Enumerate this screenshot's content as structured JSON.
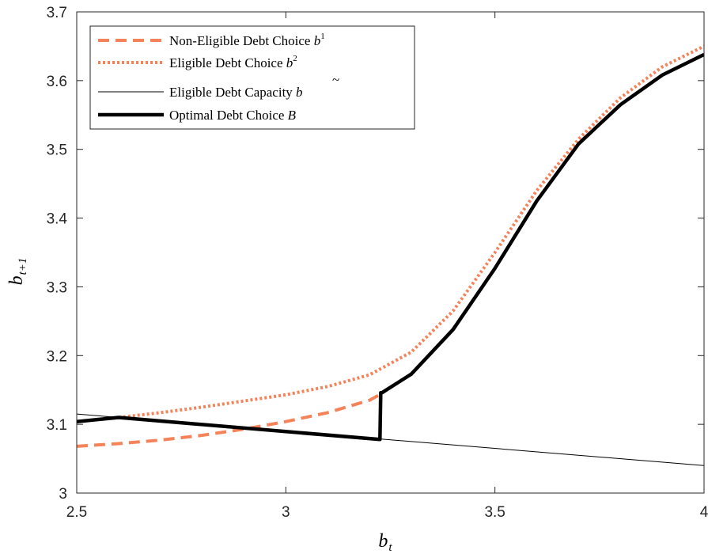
{
  "chart_data": {
    "type": "line",
    "title": "",
    "xlabel": "b",
    "xlabel_sub": "t",
    "ylabel": "b",
    "ylabel_sub": "t+1",
    "xlim": [
      2.5,
      4
    ],
    "ylim": [
      3,
      3.7
    ],
    "xticks": [
      2.5,
      3,
      3.5,
      4
    ],
    "xtick_labels": [
      "2.5",
      "3",
      "3.5",
      "4"
    ],
    "yticks": [
      3,
      3.1,
      3.2,
      3.3,
      3.4,
      3.5,
      3.6,
      3.7
    ],
    "ytick_labels": [
      "3",
      "3.1",
      "3.2",
      "3.3",
      "3.4",
      "3.5",
      "3.6",
      "3.7"
    ],
    "grid": false,
    "legend_position": "top-left",
    "series": [
      {
        "name": "Non-Eligible Debt Choice",
        "symbol": "b",
        "superscript": "1",
        "style": "dashed",
        "color": "#F4835A",
        "x": [
          2.5,
          2.6,
          2.7,
          2.8,
          2.9,
          3.0,
          3.1,
          3.2,
          3.23
        ],
        "y": [
          3.068,
          3.072,
          3.077,
          3.084,
          3.093,
          3.104,
          3.117,
          3.135,
          3.145
        ]
      },
      {
        "name": "Eligible Debt Choice",
        "symbol": "b",
        "superscript": "2",
        "style": "dotted",
        "color": "#F4835A",
        "x": [
          2.6,
          2.7,
          2.8,
          2.9,
          3.0,
          3.1,
          3.2,
          3.3,
          3.4,
          3.5,
          3.6,
          3.7,
          3.8,
          3.9,
          4.0
        ],
        "y": [
          3.11,
          3.117,
          3.125,
          3.134,
          3.143,
          3.155,
          3.172,
          3.205,
          3.265,
          3.35,
          3.44,
          3.515,
          3.575,
          3.62,
          3.65
        ]
      },
      {
        "name": "Eligible Debt Capacity",
        "symbol": "b",
        "accent": "~",
        "style": "thin",
        "color": "#000000",
        "x": [
          2.5,
          4.0
        ],
        "y": [
          3.115,
          3.04
        ]
      },
      {
        "name": "Optimal Debt Choice",
        "symbol": "B",
        "style": "thick",
        "color": "#000000",
        "x": [
          2.5,
          2.6,
          3.225,
          3.227,
          3.23,
          3.3,
          3.4,
          3.5,
          3.6,
          3.7,
          3.8,
          3.9,
          4.0
        ],
        "y": [
          3.104,
          3.11,
          3.078,
          3.146,
          3.146,
          3.173,
          3.238,
          3.327,
          3.425,
          3.508,
          3.565,
          3.608,
          3.638
        ]
      }
    ]
  }
}
